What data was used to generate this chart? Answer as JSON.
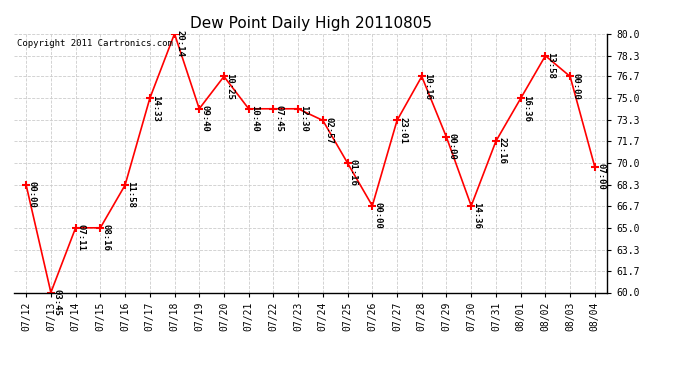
{
  "title": "Dew Point Daily High 20110805",
  "copyright": "Copyright 2011 Cartronics.com",
  "dates": [
    "07/12",
    "07/13",
    "07/14",
    "07/15",
    "07/16",
    "07/17",
    "07/18",
    "07/19",
    "07/20",
    "07/21",
    "07/22",
    "07/23",
    "07/24",
    "07/25",
    "07/26",
    "07/27",
    "07/28",
    "07/29",
    "07/30",
    "07/31",
    "08/01",
    "08/02",
    "08/03",
    "08/04"
  ],
  "values": [
    68.3,
    60.0,
    65.0,
    65.0,
    68.3,
    75.0,
    80.0,
    74.2,
    76.7,
    74.2,
    74.2,
    74.2,
    73.3,
    70.0,
    66.7,
    73.3,
    76.7,
    72.0,
    66.7,
    71.7,
    75.0,
    78.3,
    76.7,
    69.7
  ],
  "annotations": [
    "00:00",
    "03:45",
    "07:11",
    "08:16",
    "11:58",
    "14:33",
    "20:14",
    "09:40",
    "10:25",
    "10:40",
    "07:45",
    "12:30",
    "02:57",
    "01:16",
    "00:00",
    "23:01",
    "10:16",
    "00:00",
    "14:36",
    "22:16",
    "16:36",
    "13:58",
    "00:00",
    "07:00"
  ],
  "ylim": [
    60.0,
    80.0
  ],
  "yticks": [
    60.0,
    61.7,
    63.3,
    65.0,
    66.7,
    68.3,
    70.0,
    71.7,
    73.3,
    75.0,
    76.7,
    78.3,
    80.0
  ],
  "line_color": "red",
  "marker_color": "red",
  "bg_color": "white",
  "grid_color": "#cccccc",
  "annotation_color": "black",
  "title_fontsize": 11,
  "tick_fontsize": 7,
  "annot_fontsize": 6.5
}
